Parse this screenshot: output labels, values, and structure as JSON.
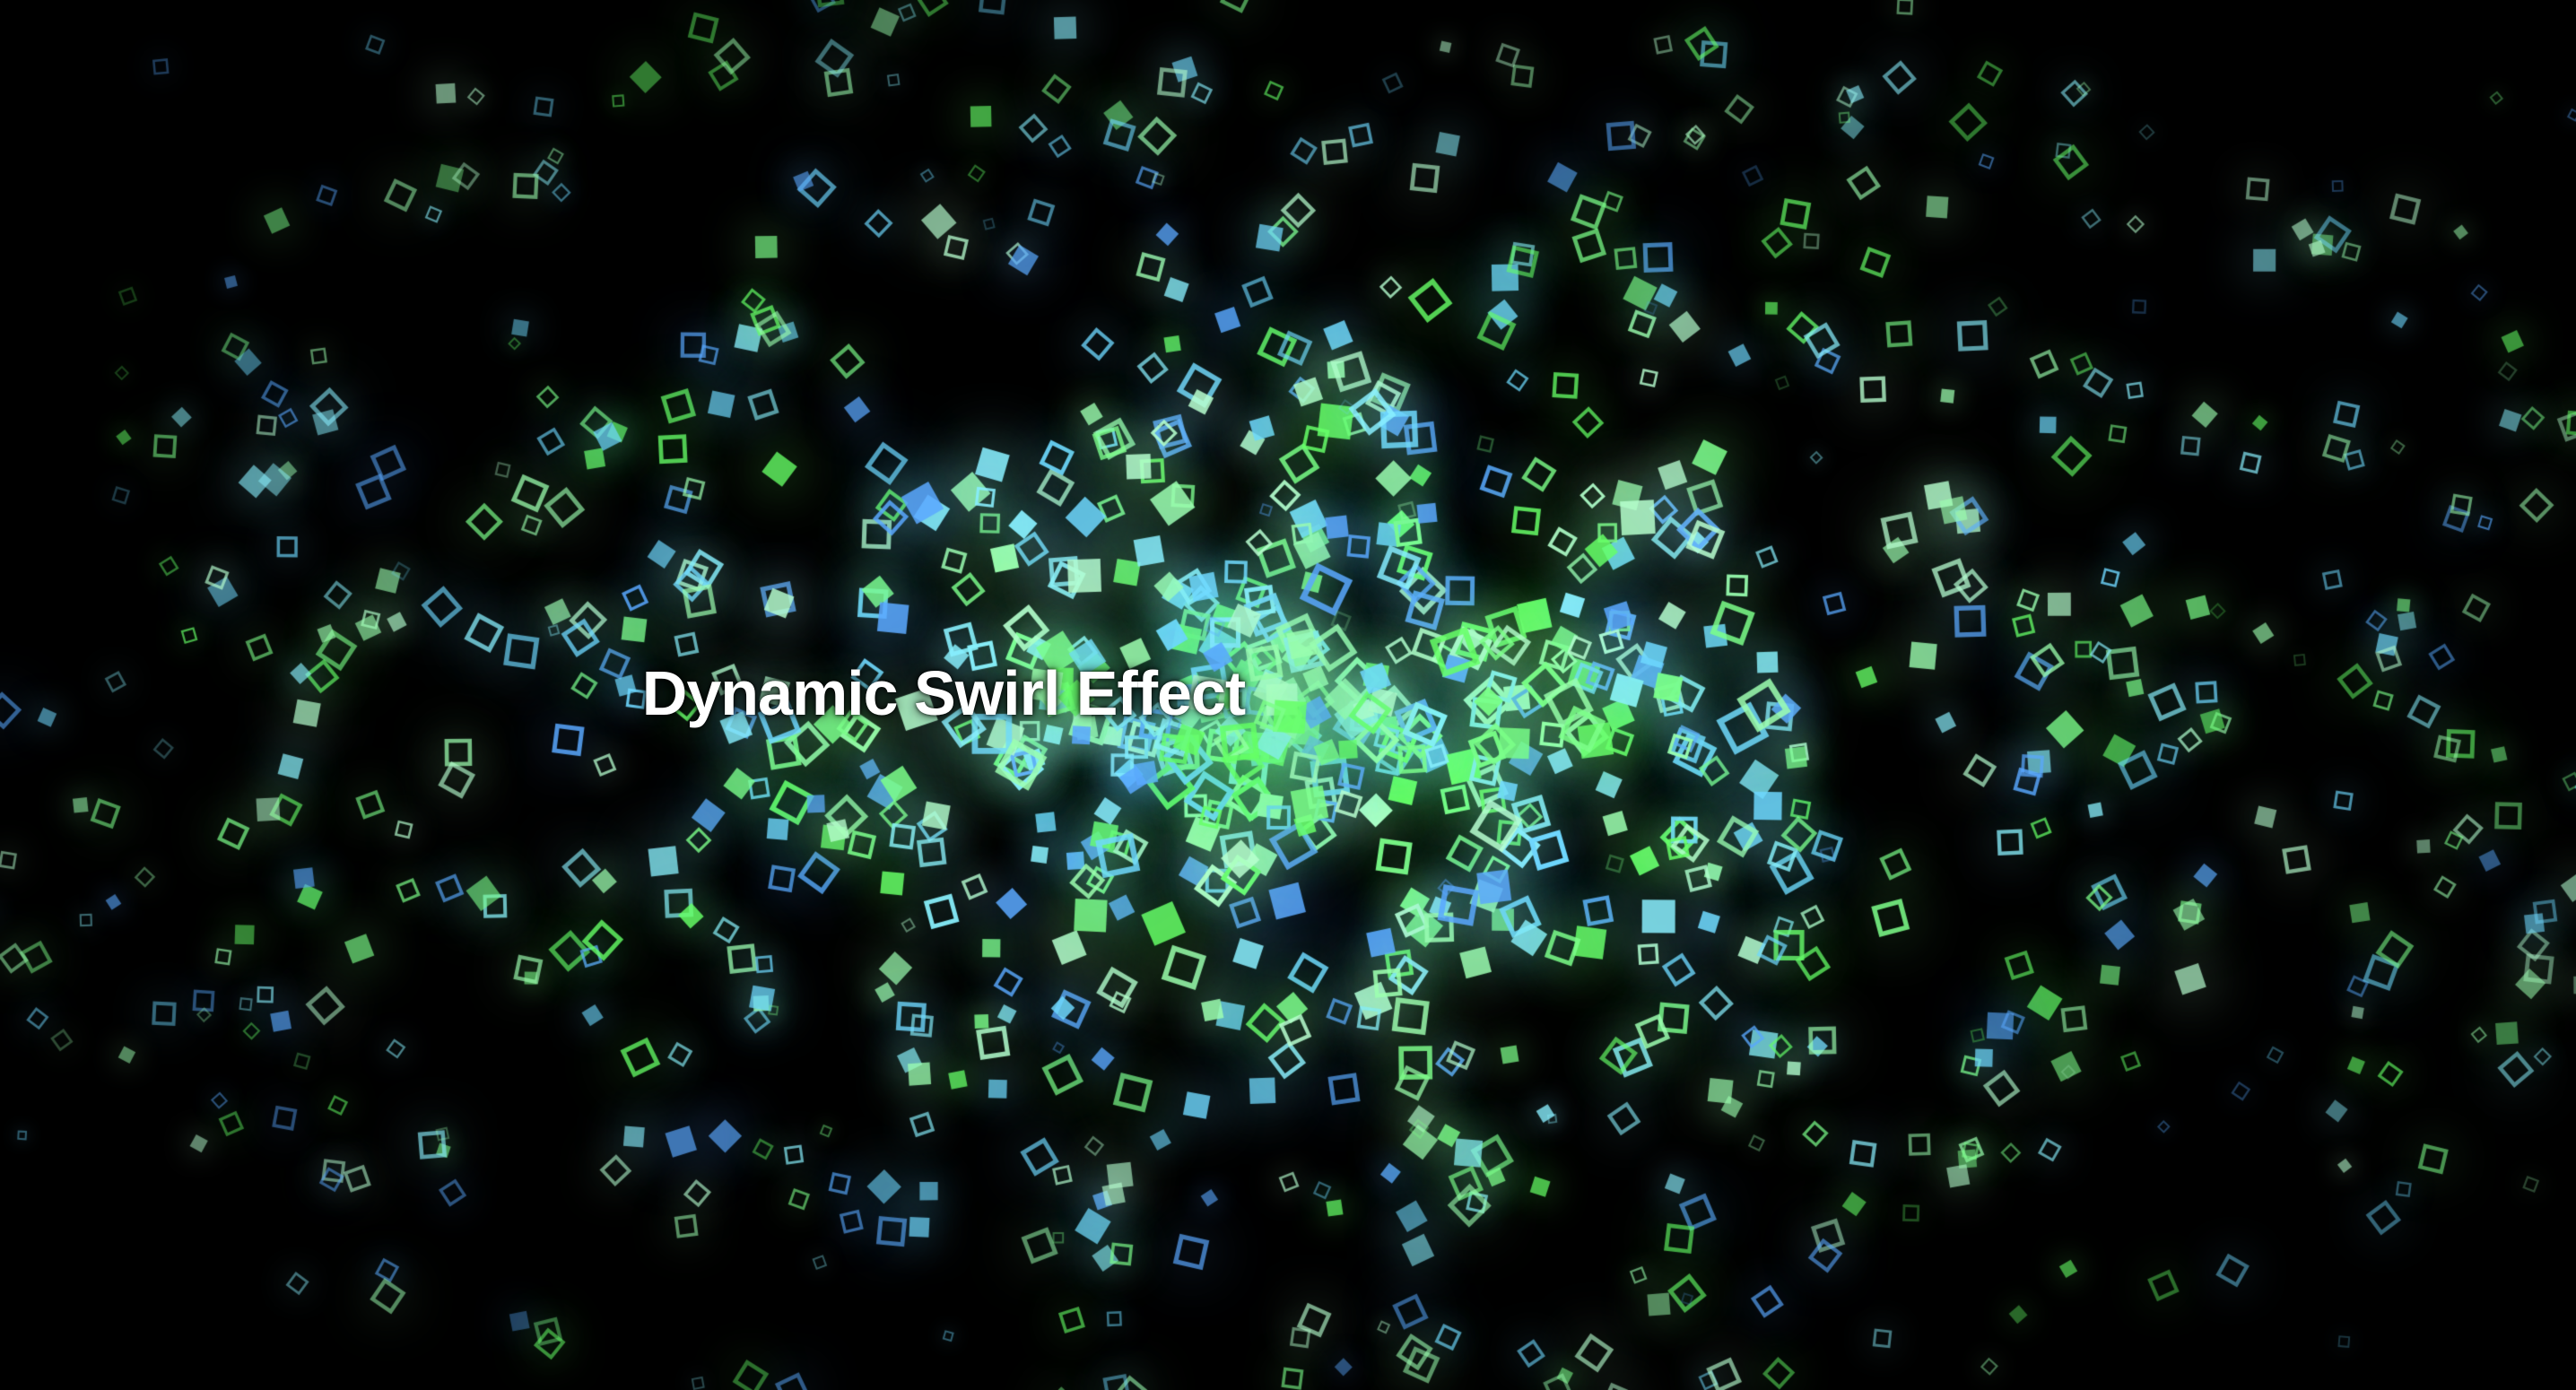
{
  "title": "Dynamic Swirl Effect",
  "background_color": "#000000",
  "title_color": "#ffffff",
  "particle_colors": [
    "#7dff8a",
    "#9dffb0",
    "#8af0ff",
    "#6fd8ff",
    "#5aa8ff",
    "#b8ffd0",
    "#66ff66"
  ],
  "particle_shape": "square"
}
